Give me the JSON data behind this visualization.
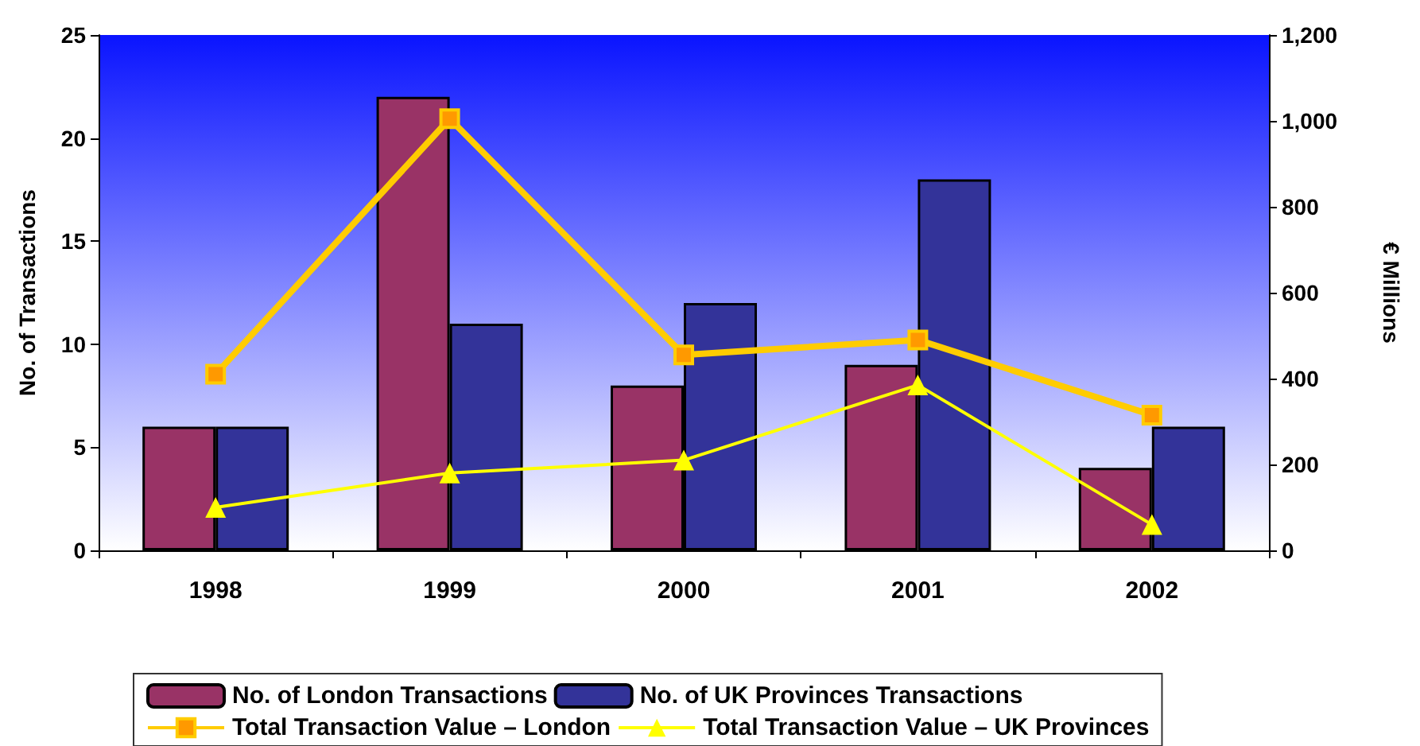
{
  "chart_data": {
    "type": "bar",
    "ylabel": "No. of Transactions",
    "y2label": "€ Millions",
    "categories": [
      "1998",
      "1999",
      "2000",
      "2001",
      "2002"
    ],
    "series": [
      {
        "name": "No. of London Transactions",
        "color": "#993366",
        "values": [
          6,
          22,
          8,
          9,
          4
        ]
      },
      {
        "name": "No. of UK Provinces Transactions",
        "color": "#333399",
        "values": [
          6,
          11,
          12,
          18,
          6
        ]
      },
      {
        "name": "Total Transaction Value – London",
        "type": "line",
        "axis": "y2",
        "marker": "square",
        "color": "#ffcc00",
        "values": [
          410,
          1005,
          455,
          490,
          315
        ]
      },
      {
        "name": "Total Transaction Value – UK Provinces",
        "type": "line",
        "axis": "y2",
        "marker": "triangle",
        "color": "#ffff00",
        "values": [
          100,
          180,
          210,
          385,
          60
        ]
      }
    ],
    "ylim": [
      0,
      25
    ],
    "yticks": [
      0,
      5,
      10,
      15,
      20,
      25
    ],
    "y2lim": [
      0,
      1200
    ],
    "y2ticks": [
      0,
      200,
      400,
      600,
      800,
      {
        "value": 1000,
        "label": "1,000"
      },
      {
        "value": 1200,
        "label": "1,200"
      }
    ],
    "grid": false,
    "legend": "bottom"
  }
}
